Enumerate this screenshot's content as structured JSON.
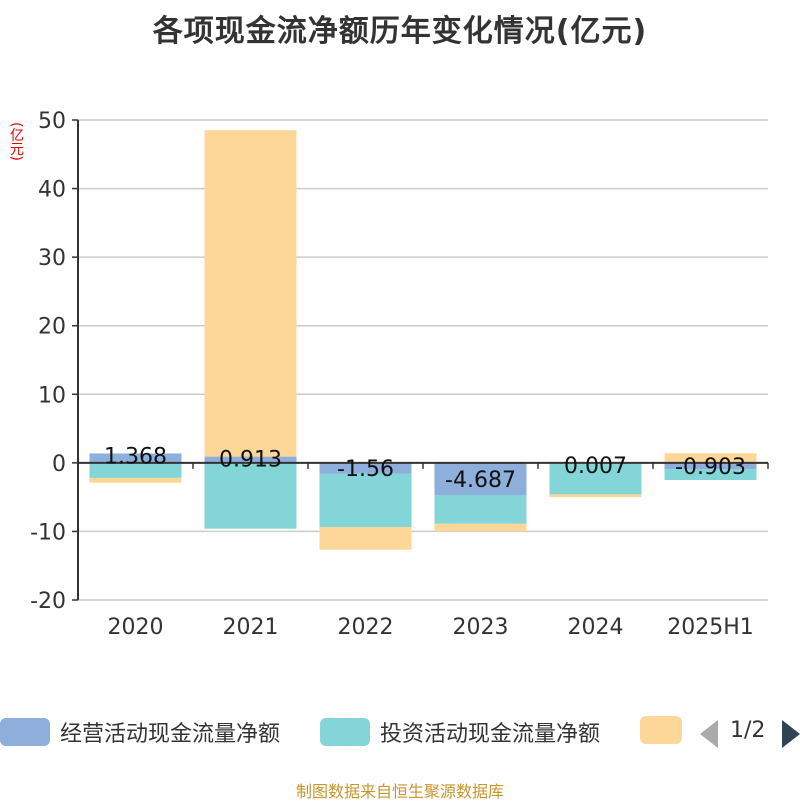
{
  "chart_data": {
    "type": "bar",
    "title": "各项现金流净额历年变化情况(亿元)",
    "ylabel": "(亿元)",
    "categories": [
      "2020",
      "2021",
      "2022",
      "2023",
      "2024",
      "2025H1"
    ],
    "ylim": [
      -20,
      50
    ],
    "yticks": [
      50,
      40,
      30,
      20,
      10,
      0,
      -10,
      -20
    ],
    "grid": true,
    "stacked": true,
    "series": [
      {
        "name": "经营活动现金流量净额",
        "color": "#8eaedb",
        "values": [
          1.368,
          0.913,
          -1.56,
          -4.687,
          0.007,
          -0.903
        ],
        "labels": [
          "1.368",
          "0.913",
          "-1.56",
          "-4.687",
          "0.007",
          "-0.903"
        ]
      },
      {
        "name": "投资活动现金流量净额",
        "color": "#84d5d7",
        "values": [
          -2.2,
          -9.6,
          -7.8,
          -4.2,
          -4.6,
          -1.6
        ]
      },
      {
        "name": "",
        "color": "#fdd797",
        "values": [
          -0.7,
          47.6,
          -3.3,
          -1.1,
          -0.4,
          1.4
        ]
      }
    ],
    "legend_position": "bottom"
  },
  "legend": {
    "page": "1/2"
  },
  "source": "制图数据来自恒生聚源数据库"
}
